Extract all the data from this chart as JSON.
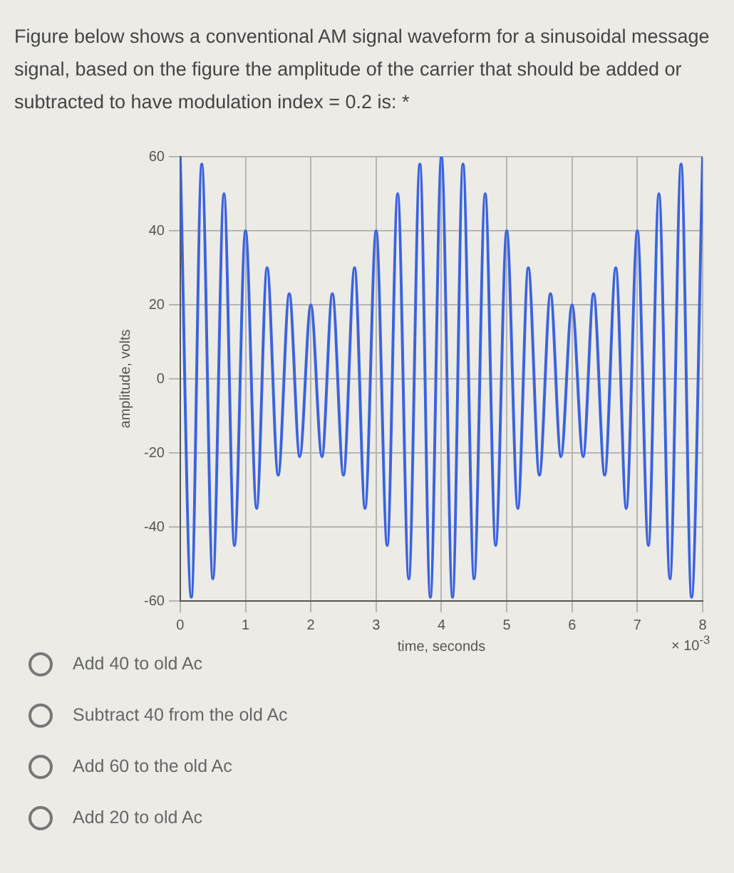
{
  "chart_data": {
    "type": "line",
    "title": "Figure below shows a conventional AM signal waveform for a sinusoidal message signal, based on the figure the amplitude of the carrier that should be added or subtracted to have modulation index = 0.2 is: *",
    "xlabel": "time, seconds",
    "ylabel": "amplitude, volts",
    "annotations": [
      "× 10$^{-3}$",
      "Add 40 to old Ac",
      "Subtract 40 from the old Ac",
      "Add 60 to the old Ac",
      "Add 20 to old Ac"
    ],
    "x": [
      0,
      0.17,
      0.33,
      0.5,
      0.67,
      0.83,
      1,
      1.17,
      1.33,
      1.5,
      1.67,
      1.83,
      2,
      2.17,
      2.33,
      2.5,
      2.67,
      2.83,
      3,
      3.17,
      3.33,
      3.5,
      3.67,
      3.83,
      4,
      4.17,
      4.33,
      4.5,
      4.67,
      4.83,
      5,
      5.17,
      5.33,
      5.5,
      5.67,
      5.83,
      6,
      6.17,
      6.33,
      6.5,
      6.67,
      6.83,
      7,
      7.17,
      7.33,
      7.5,
      7.67,
      7.83,
      8
    ],
    "series": [
      {
        "color": "#3b63e0",
        "values": [
          60,
          -59,
          58,
          -54,
          50,
          -45,
          40,
          -35,
          30,
          -26,
          23,
          -21,
          20,
          -21,
          23,
          -26,
          30,
          -35,
          40,
          -45,
          50,
          -54,
          58,
          -59,
          60,
          -59,
          58,
          -54,
          50,
          -45,
          40,
          -35,
          30,
          -26,
          23,
          -21,
          20,
          -21,
          23,
          -26,
          30,
          -35,
          40,
          -45,
          50,
          -54,
          58,
          -59,
          60
        ]
      }
    ],
    "xlim": [
      0,
      8
    ],
    "xticks": [
      0,
      1,
      2,
      3,
      4,
      5,
      6,
      7,
      8
    ],
    "ylim": [
      -60,
      60
    ],
    "yticks": [
      -60,
      -40,
      -20,
      0,
      20,
      40,
      60
    ],
    "grid": true,
    "legend": false,
    "marker": "none",
    "line_style": "solid"
  }
}
